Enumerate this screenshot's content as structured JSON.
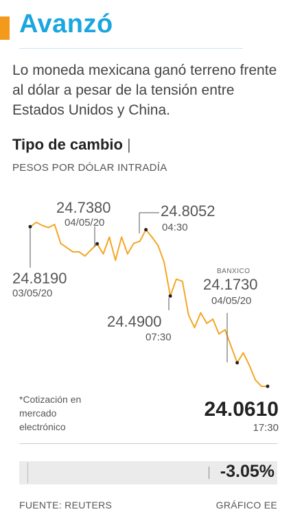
{
  "header": {
    "title": "Avanzó",
    "subtitle": "Lo moneda mexicana ganó terreno frente al dólar a pesar de la tensión entre Estados Unidos y China."
  },
  "chart_data": {
    "type": "line",
    "title": "Tipo de cambio",
    "subtitle": "PESOS POR DÓLAR INTRADÍA",
    "series": [
      {
        "values": [
          24.819,
          24.84,
          24.825,
          24.815,
          24.83,
          24.74,
          24.72,
          24.7,
          24.7,
          24.68,
          24.71,
          24.738,
          24.69,
          24.77,
          24.66,
          24.77,
          24.69,
          24.74,
          24.75,
          24.8052,
          24.77,
          24.73,
          24.65,
          24.49,
          24.57,
          24.56,
          24.4,
          24.34,
          24.41,
          24.36,
          24.38,
          24.31,
          24.33,
          24.25,
          24.173,
          24.22,
          24.16,
          24.09,
          24.061,
          24.061
        ]
      }
    ],
    "line_color": "#f4a623",
    "annotations": [
      {
        "index": 0,
        "value": "24.8190",
        "time": "03/05/20"
      },
      {
        "index": 11,
        "value": "24.7380",
        "time": "04/05/20"
      },
      {
        "index": 19,
        "value": "24.8052",
        "time": "04:30"
      },
      {
        "index": 23,
        "value": "24.4900",
        "time": "07:30"
      },
      {
        "index": 34,
        "value": "24.1730",
        "time": "04/05/20",
        "tag": "BANXICO"
      },
      {
        "index": 39,
        "value": "24.0610",
        "time": "17:30"
      }
    ]
  },
  "note": "*Cotización en mercado electrónico",
  "change": {
    "value": "-3.05%"
  },
  "footer": {
    "source": "FUENTE: REUTERS",
    "credit": "GRÁFICO EE"
  }
}
